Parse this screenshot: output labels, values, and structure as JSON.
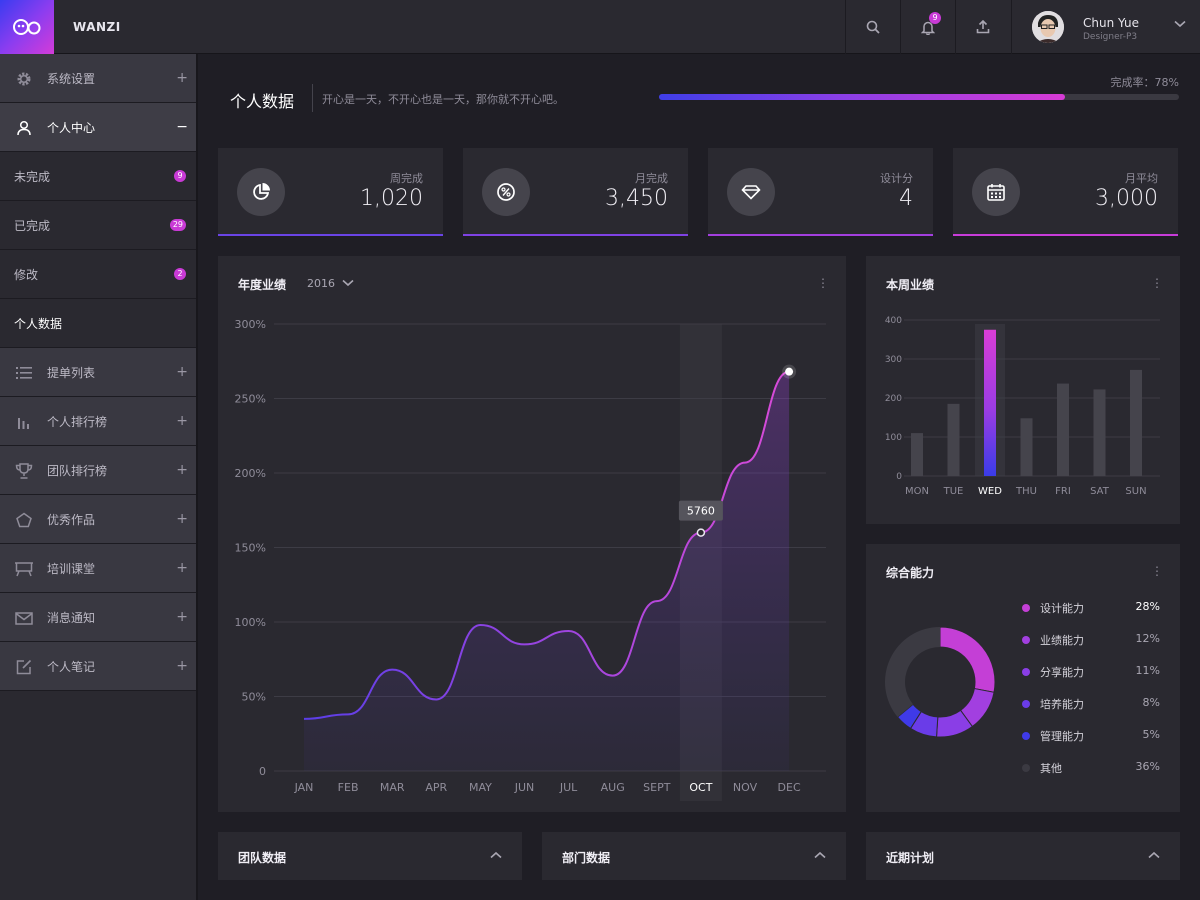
{
  "app": {
    "brand": "WANZI"
  },
  "topbar": {
    "notification_count": "9",
    "user": {
      "name": "Chun Yue",
      "role": "Designer-P3"
    }
  },
  "sidebar": {
    "items": [
      {
        "label": "系统设置",
        "icon": "gear-icon",
        "expand": "+"
      },
      {
        "label": "个人中心",
        "icon": "user-icon",
        "expand": "−"
      },
      {
        "label": "未完成",
        "badge": "9"
      },
      {
        "label": "已完成",
        "badge": "29"
      },
      {
        "label": "修改",
        "badge": "2"
      },
      {
        "label": "个人数据"
      },
      {
        "label": "提单列表",
        "icon": "list-icon",
        "expand": "+"
      },
      {
        "label": "个人排行榜",
        "icon": "bar-chart-icon",
        "expand": "+"
      },
      {
        "label": "团队排行榜",
        "icon": "trophy-icon",
        "expand": "+"
      },
      {
        "label": "优秀作品",
        "icon": "pentagon-icon",
        "expand": "+"
      },
      {
        "label": "培训课堂",
        "icon": "easel-icon",
        "expand": "+"
      },
      {
        "label": "消息通知",
        "icon": "mail-icon",
        "expand": "+"
      },
      {
        "label": "个人笔记",
        "icon": "edit-icon",
        "expand": "+"
      }
    ]
  },
  "header": {
    "title": "个人数据",
    "subtitle": "开心是一天，不开心也是一天，那你就不开心吧。",
    "progress_label": "完成率：78%",
    "progress": 0.78
  },
  "stats": [
    {
      "label": "周完成",
      "value": "1,020",
      "icon": "pie-icon",
      "color": "#6a44e6"
    },
    {
      "label": "月完成",
      "value": "3,450",
      "icon": "percent-icon",
      "color": "#7f42e4"
    },
    {
      "label": "设计分",
      "value": "4",
      "icon": "diamond-icon",
      "color": "#a33fdf"
    },
    {
      "label": "月平均",
      "value": "3,000",
      "icon": "calendar-icon",
      "color": "#c83cd9"
    }
  ],
  "annual": {
    "title": "年度业绩",
    "year": "2016",
    "more": "⋮",
    "tooltip": "5760"
  },
  "weekly": {
    "title": "本周业绩",
    "more": "⋮"
  },
  "ability": {
    "title": "综合能力",
    "more": "⋮",
    "items": [
      {
        "name": "设计能力",
        "pct": "28%",
        "value": 28,
        "color": "#c43fd6"
      },
      {
        "name": "业绩能力",
        "pct": "12%",
        "value": 12,
        "color": "#a23fe0"
      },
      {
        "name": "分享能力",
        "pct": "11%",
        "value": 11,
        "color": "#8a3ee6"
      },
      {
        "name": "培养能力",
        "pct": "8%",
        "value": 8,
        "color": "#6a3ce8"
      },
      {
        "name": "管理能力",
        "pct": "5%",
        "value": 5,
        "color": "#3f3ae8"
      },
      {
        "name": "其他",
        "pct": "36%",
        "value": 36,
        "color": "#3b3a42"
      }
    ]
  },
  "bottom": [
    {
      "title": "团队数据"
    },
    {
      "title": "部门数据"
    },
    {
      "title": "近期计划"
    }
  ],
  "chart_data": [
    {
      "type": "area",
      "categories": [
        "JAN",
        "FEB",
        "MAR",
        "APR",
        "MAY",
        "JUN",
        "JUL",
        "AUG",
        "SEPT",
        "OCT",
        "NOV",
        "DEC"
      ],
      "yticks": [
        "0",
        "50%",
        "100%",
        "150%",
        "200%",
        "250%",
        "300%"
      ],
      "ylim": [
        0,
        300
      ],
      "values": [
        35,
        38,
        68,
        48,
        98,
        85,
        94,
        64,
        114,
        160,
        207,
        268
      ],
      "highlight": "OCT",
      "colors": {
        "line_start": "#5b3ee8",
        "line_end": "#d94bd8"
      },
      "grid": true
    },
    {
      "type": "bar",
      "categories": [
        "MON",
        "TUE",
        "WED",
        "THU",
        "FRI",
        "SAT",
        "SUN"
      ],
      "yticks": [
        "0",
        "100",
        "200",
        "300",
        "400"
      ],
      "ylim": [
        0,
        400
      ],
      "values": [
        110,
        185,
        375,
        148,
        237,
        222,
        272
      ],
      "highlight": "WED",
      "colors": {
        "bar": "#45444c",
        "highlight_top": "#d93dd6",
        "highlight_bottom": "#3a3ce8"
      },
      "grid": true
    },
    {
      "type": "pie",
      "labels": [
        "设计能力",
        "业绩能力",
        "分享能力",
        "培养能力",
        "管理能力",
        "其他"
      ],
      "values": [
        28,
        12,
        11,
        8,
        5,
        36
      ]
    }
  ]
}
